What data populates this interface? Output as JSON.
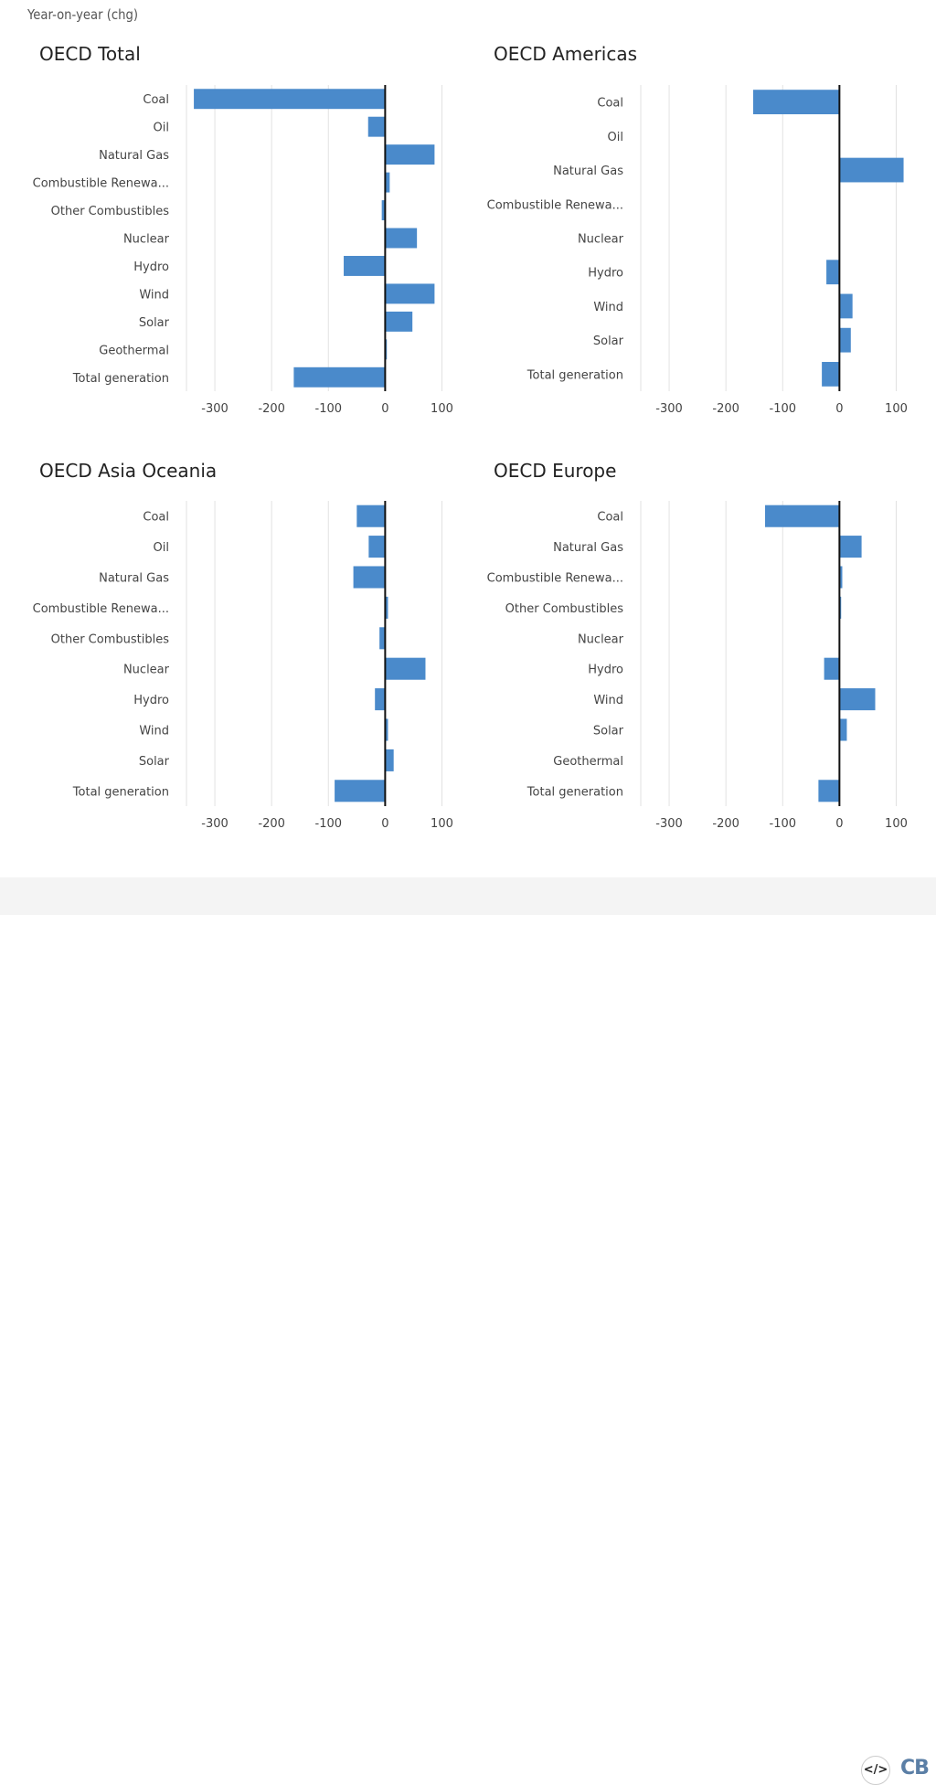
{
  "header": {
    "label": "Year-on-year (chg)"
  },
  "footer": {
    "embed_icon": "code-embed-icon",
    "logo": "CB"
  },
  "colors": {
    "bar": "#4a8acb",
    "zero_line": "#111111",
    "grid": "#e2e2e2"
  },
  "chart_data": [
    {
      "type": "bar",
      "orientation": "horizontal",
      "title": "OECD Total",
      "xlim": [
        -350,
        125
      ],
      "xticks": [
        -300,
        -200,
        -100,
        0,
        100
      ],
      "grid": true,
      "categories": [
        "Coal",
        "Oil",
        "Natural Gas",
        "Combustible Renewa...",
        "Other Combustibles",
        "Nuclear",
        "Hydro",
        "Wind",
        "Solar",
        "Geothermal",
        "Total generation"
      ],
      "values": [
        -337,
        -30,
        87,
        8,
        -6,
        56,
        -73,
        87,
        48,
        3,
        -161
      ]
    },
    {
      "type": "bar",
      "orientation": "horizontal",
      "title": "OECD Americas",
      "xlim": [
        -350,
        125
      ],
      "xticks": [
        -300,
        -200,
        -100,
        0,
        100
      ],
      "grid": true,
      "categories": [
        "Coal",
        "Oil",
        "Natural Gas",
        "Combustible Renewa...",
        "Nuclear",
        "Hydro",
        "Wind",
        "Solar",
        "Total generation"
      ],
      "values": [
        -152,
        0,
        113,
        1,
        1,
        -23,
        23,
        20,
        -31
      ]
    },
    {
      "type": "bar",
      "orientation": "horizontal",
      "title": "OECD Asia Oceania",
      "xlim": [
        -350,
        125
      ],
      "xticks": [
        -300,
        -200,
        -100,
        0,
        100
      ],
      "grid": true,
      "categories": [
        "Coal",
        "Oil",
        "Natural Gas",
        "Combustible Renewa...",
        "Other Combustibles",
        "Nuclear",
        "Hydro",
        "Wind",
        "Solar",
        "Total generation"
      ],
      "values": [
        -50,
        -29,
        -56,
        5,
        -10,
        71,
        -18,
        5,
        15,
        -89
      ]
    },
    {
      "type": "bar",
      "orientation": "horizontal",
      "title": "OECD Europe",
      "xlim": [
        -350,
        125
      ],
      "xticks": [
        -300,
        -200,
        -100,
        0,
        100
      ],
      "grid": true,
      "categories": [
        "Coal",
        "Natural Gas",
        "Combustible Renewa...",
        "Other Combustibles",
        "Nuclear",
        "Hydro",
        "Wind",
        "Solar",
        "Geothermal",
        "Total generation"
      ],
      "values": [
        -131,
        39,
        5,
        3,
        0,
        -27,
        63,
        13,
        0,
        -37
      ]
    }
  ]
}
